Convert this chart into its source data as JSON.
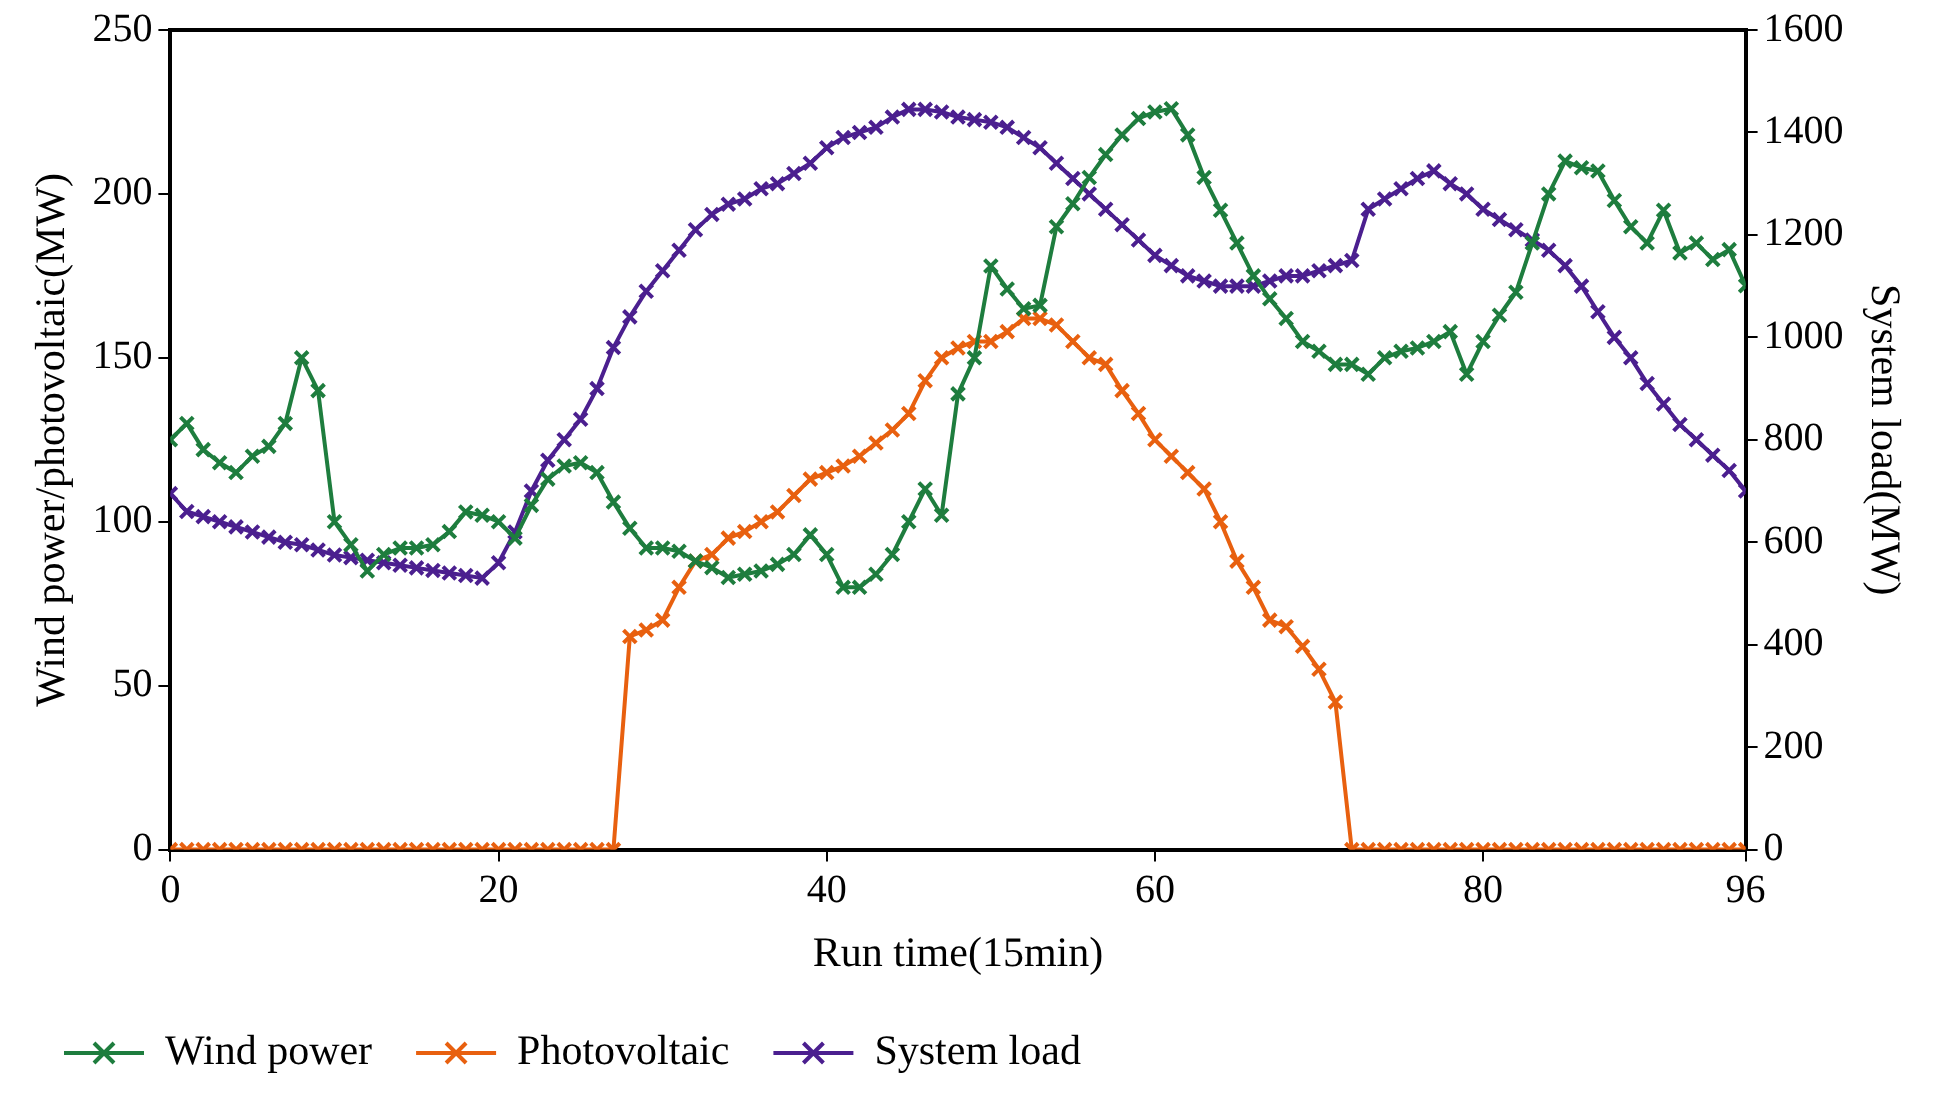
{
  "chart_data": {
    "type": "line",
    "xlabel": "Run time(15min)",
    "ylabel": "Wind power/photovoltaic(MW)",
    "y2label": "System load(MW)",
    "x": [
      0,
      1,
      2,
      3,
      4,
      5,
      6,
      7,
      8,
      9,
      10,
      11,
      12,
      13,
      14,
      15,
      16,
      17,
      18,
      19,
      20,
      21,
      22,
      23,
      24,
      25,
      26,
      27,
      28,
      29,
      30,
      31,
      32,
      33,
      34,
      35,
      36,
      37,
      38,
      39,
      40,
      41,
      42,
      43,
      44,
      45,
      46,
      47,
      48,
      49,
      50,
      51,
      52,
      53,
      54,
      55,
      56,
      57,
      58,
      59,
      60,
      61,
      62,
      63,
      64,
      65,
      66,
      67,
      68,
      69,
      70,
      71,
      72,
      73,
      74,
      75,
      76,
      77,
      78,
      79,
      80,
      81,
      82,
      83,
      84,
      85,
      86,
      87,
      88,
      89,
      90,
      91,
      92,
      93,
      94,
      95,
      96
    ],
    "xlim": [
      0,
      96
    ],
    "xticks": [
      0,
      20,
      40,
      60,
      80,
      96
    ],
    "ylim": [
      0,
      250
    ],
    "yticks": [
      0,
      50,
      100,
      150,
      200,
      250
    ],
    "y2lim": [
      0,
      1600
    ],
    "y2ticks": [
      0,
      200,
      400,
      600,
      800,
      1000,
      1200,
      1400,
      1600
    ],
    "grid": false,
    "legend": "bottom",
    "marker": "cross",
    "line_style": "solid",
    "series": [
      {
        "name": "Wind power",
        "color": "#1e7d3e",
        "values": [
          125,
          130,
          122,
          118,
          115,
          120,
          123,
          130,
          150,
          140,
          100,
          93,
          85,
          90,
          92,
          92,
          93,
          97,
          103,
          102,
          100,
          95,
          105,
          113,
          117,
          118,
          115,
          106,
          98,
          92,
          92,
          91,
          88,
          86,
          83,
          84,
          85,
          87,
          90,
          96,
          90,
          80,
          80,
          84,
          90,
          100,
          110,
          102,
          139,
          150,
          178,
          171,
          165,
          166,
          190,
          197,
          205,
          212,
          218,
          223,
          225,
          226,
          218,
          205,
          195,
          185,
          175,
          168,
          162,
          155,
          152,
          148,
          148,
          145,
          150,
          152,
          153,
          155,
          158,
          145,
          155,
          163,
          170,
          185,
          200,
          210,
          208,
          207,
          198,
          190,
          185,
          195,
          182,
          185,
          180,
          183,
          172
        ]
      },
      {
        "name": "Photovoltaic",
        "color": "#e8600f",
        "values": [
          0,
          0,
          0,
          0,
          0,
          0,
          0,
          0,
          0,
          0,
          0,
          0,
          0,
          0,
          0,
          0,
          0,
          0,
          0,
          0,
          0,
          0,
          0,
          0,
          0,
          0,
          0,
          0,
          65,
          67,
          70,
          80,
          88,
          90,
          95,
          97,
          100,
          103,
          108,
          113,
          115,
          117,
          120,
          124,
          128,
          133,
          143,
          150,
          153,
          155,
          155,
          158,
          162,
          162,
          160,
          155,
          150,
          148,
          140,
          133,
          125,
          120,
          115,
          110,
          100,
          88,
          80,
          70,
          68,
          62,
          55,
          45,
          0,
          0,
          0,
          0,
          0,
          0,
          0,
          0,
          0,
          0,
          0,
          0,
          0,
          0,
          0,
          0,
          0,
          0,
          0,
          0,
          0,
          0,
          0,
          0,
          0
        ]
      },
      {
        "name": "System load",
        "color": "#4b1f8f",
        "axis": "y2",
        "values": [
          695,
          660,
          650,
          640,
          630,
          620,
          610,
          600,
          595,
          585,
          575,
          570,
          565,
          560,
          555,
          550,
          545,
          540,
          535,
          530,
          560,
          620,
          700,
          760,
          800,
          840,
          900,
          980,
          1040,
          1090,
          1130,
          1170,
          1210,
          1240,
          1260,
          1270,
          1290,
          1300,
          1320,
          1340,
          1370,
          1390,
          1400,
          1410,
          1430,
          1445,
          1445,
          1440,
          1430,
          1425,
          1420,
          1410,
          1390,
          1370,
          1340,
          1310,
          1280,
          1250,
          1220,
          1190,
          1160,
          1140,
          1120,
          1110,
          1100,
          1100,
          1100,
          1110,
          1120,
          1120,
          1130,
          1140,
          1150,
          1250,
          1270,
          1290,
          1310,
          1325,
          1300,
          1280,
          1250,
          1230,
          1210,
          1190,
          1170,
          1140,
          1100,
          1050,
          1000,
          960,
          910,
          870,
          830,
          800,
          770,
          740,
          700
        ]
      }
    ]
  }
}
